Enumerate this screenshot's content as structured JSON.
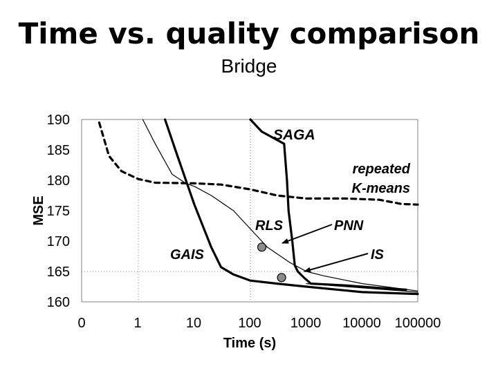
{
  "title": "Time vs. quality comparison",
  "subtitle": "Bridge",
  "chart_data": {
    "type": "line",
    "xlabel": "Time (s)",
    "ylabel": "MSE",
    "x_tick_labels": [
      "0",
      "1",
      "10",
      "100",
      "1000",
      "10000",
      "100000"
    ],
    "y_ticks": [
      160,
      165,
      170,
      175,
      180,
      185,
      190
    ],
    "ylim": [
      160,
      190
    ],
    "x_scale": "log",
    "grid": "vertical dotted lines at 1 and 100",
    "legend": "none",
    "series": [
      {
        "name": "SAGA",
        "style": "solid-thick",
        "points": [
          [
            100,
            190
          ],
          [
            160,
            188
          ],
          [
            400,
            186
          ],
          [
            450,
            180
          ],
          [
            480,
            175
          ],
          [
            560,
            170
          ],
          [
            620,
            166
          ],
          [
            700,
            165
          ],
          [
            900,
            164
          ],
          [
            1200,
            163
          ],
          [
            5000,
            162.7
          ],
          [
            20000,
            162.3
          ],
          [
            60000,
            162
          ]
        ]
      },
      {
        "name": "repeated K-means",
        "style": "dashed-thick",
        "points": [
          [
            0.2,
            189.5
          ],
          [
            0.3,
            184
          ],
          [
            0.5,
            181.5
          ],
          [
            1,
            180.2
          ],
          [
            2,
            179.6
          ],
          [
            10,
            179.5
          ],
          [
            30,
            179.3
          ],
          [
            100,
            178.5
          ],
          [
            300,
            177.5
          ],
          [
            1000,
            177
          ],
          [
            5000,
            177
          ],
          [
            20000,
            176.8
          ],
          [
            50000,
            176.1
          ],
          [
            120000,
            176
          ]
        ]
      },
      {
        "name": "GAIS",
        "style": "solid-thick",
        "points": [
          [
            3,
            190
          ],
          [
            5,
            184
          ],
          [
            10,
            176
          ],
          [
            20,
            169
          ],
          [
            30,
            165.7
          ],
          [
            50,
            164.5
          ],
          [
            100,
            163.5
          ],
          [
            300,
            163
          ],
          [
            1000,
            162.5
          ],
          [
            10000,
            161.6
          ],
          [
            100000,
            161.3
          ]
        ]
      },
      {
        "name": "",
        "style": "solid-thin",
        "points": [
          [
            1.2,
            190
          ],
          [
            2,
            186
          ],
          [
            4,
            181
          ],
          [
            7,
            179.5
          ],
          [
            10,
            179
          ],
          [
            20,
            177.5
          ],
          [
            50,
            175
          ],
          [
            100,
            172
          ],
          [
            200,
            169
          ],
          [
            500,
            166.5
          ],
          [
            1000,
            165
          ],
          [
            2000,
            164.3
          ],
          [
            10000,
            163
          ],
          [
            100000,
            161.8
          ]
        ]
      },
      {
        "name": "",
        "style": "solid-thin",
        "points": [
          [
            1000,
            163
          ],
          [
            10000,
            162.3
          ],
          [
            100000,
            161.6
          ]
        ]
      }
    ],
    "points": [
      {
        "label": "RLS",
        "x": 160,
        "y": 169
      },
      {
        "label": "IS",
        "x": 360,
        "y": 164
      }
    ],
    "annotations": [
      "SAGA",
      "repeated",
      "K-means",
      "RLS",
      "PNN",
      "GAIS",
      "IS"
    ]
  }
}
